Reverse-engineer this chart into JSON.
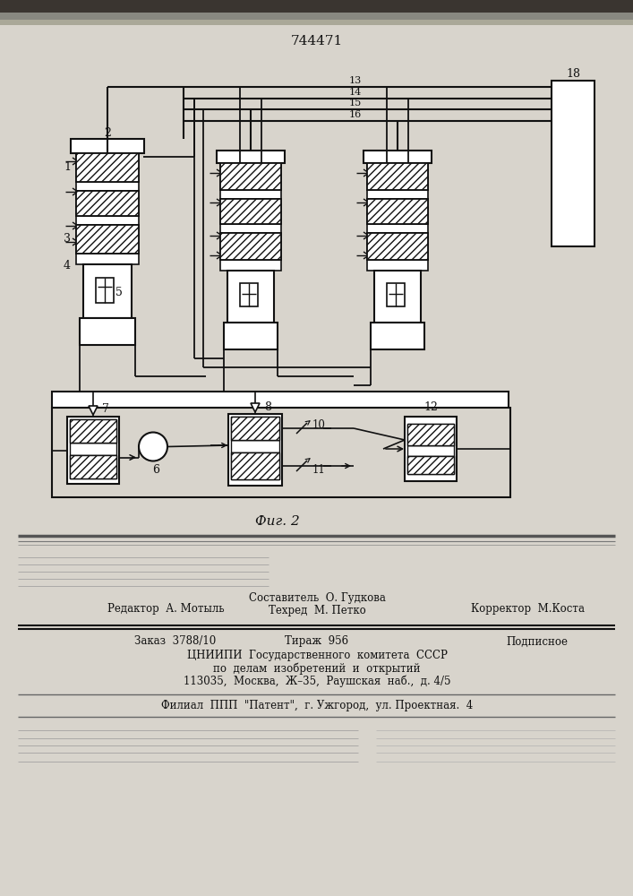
{
  "title_number": "744471",
  "fig_label": "Фиг. 2",
  "bg_color": "#d8d4cc",
  "line_color": "#111111",
  "white": "#ffffff",
  "footer_editor": "Редактор  А. Мотыль",
  "footer_composer": "Составитель  О. Гудкова",
  "footer_techred": "Техред  М. Петко",
  "footer_corrector": "Корректор  М.Коста",
  "footer_order": "Заказ  3788/10",
  "footer_copies": "Тираж  956",
  "footer_signed": "Подписное",
  "footer_org1": "ЦНИИПИ  Государственного  комитета  СССР",
  "footer_org2": "по  делам  изобретений  и  открытий",
  "footer_addr": "113035,  Москва,  Ж–35,  Раушская  наб.,  д. 4/5",
  "footer_branch": "Филиал  ППП  \"Патент\",  г. Ужгород,  ул. Проектная.  4"
}
